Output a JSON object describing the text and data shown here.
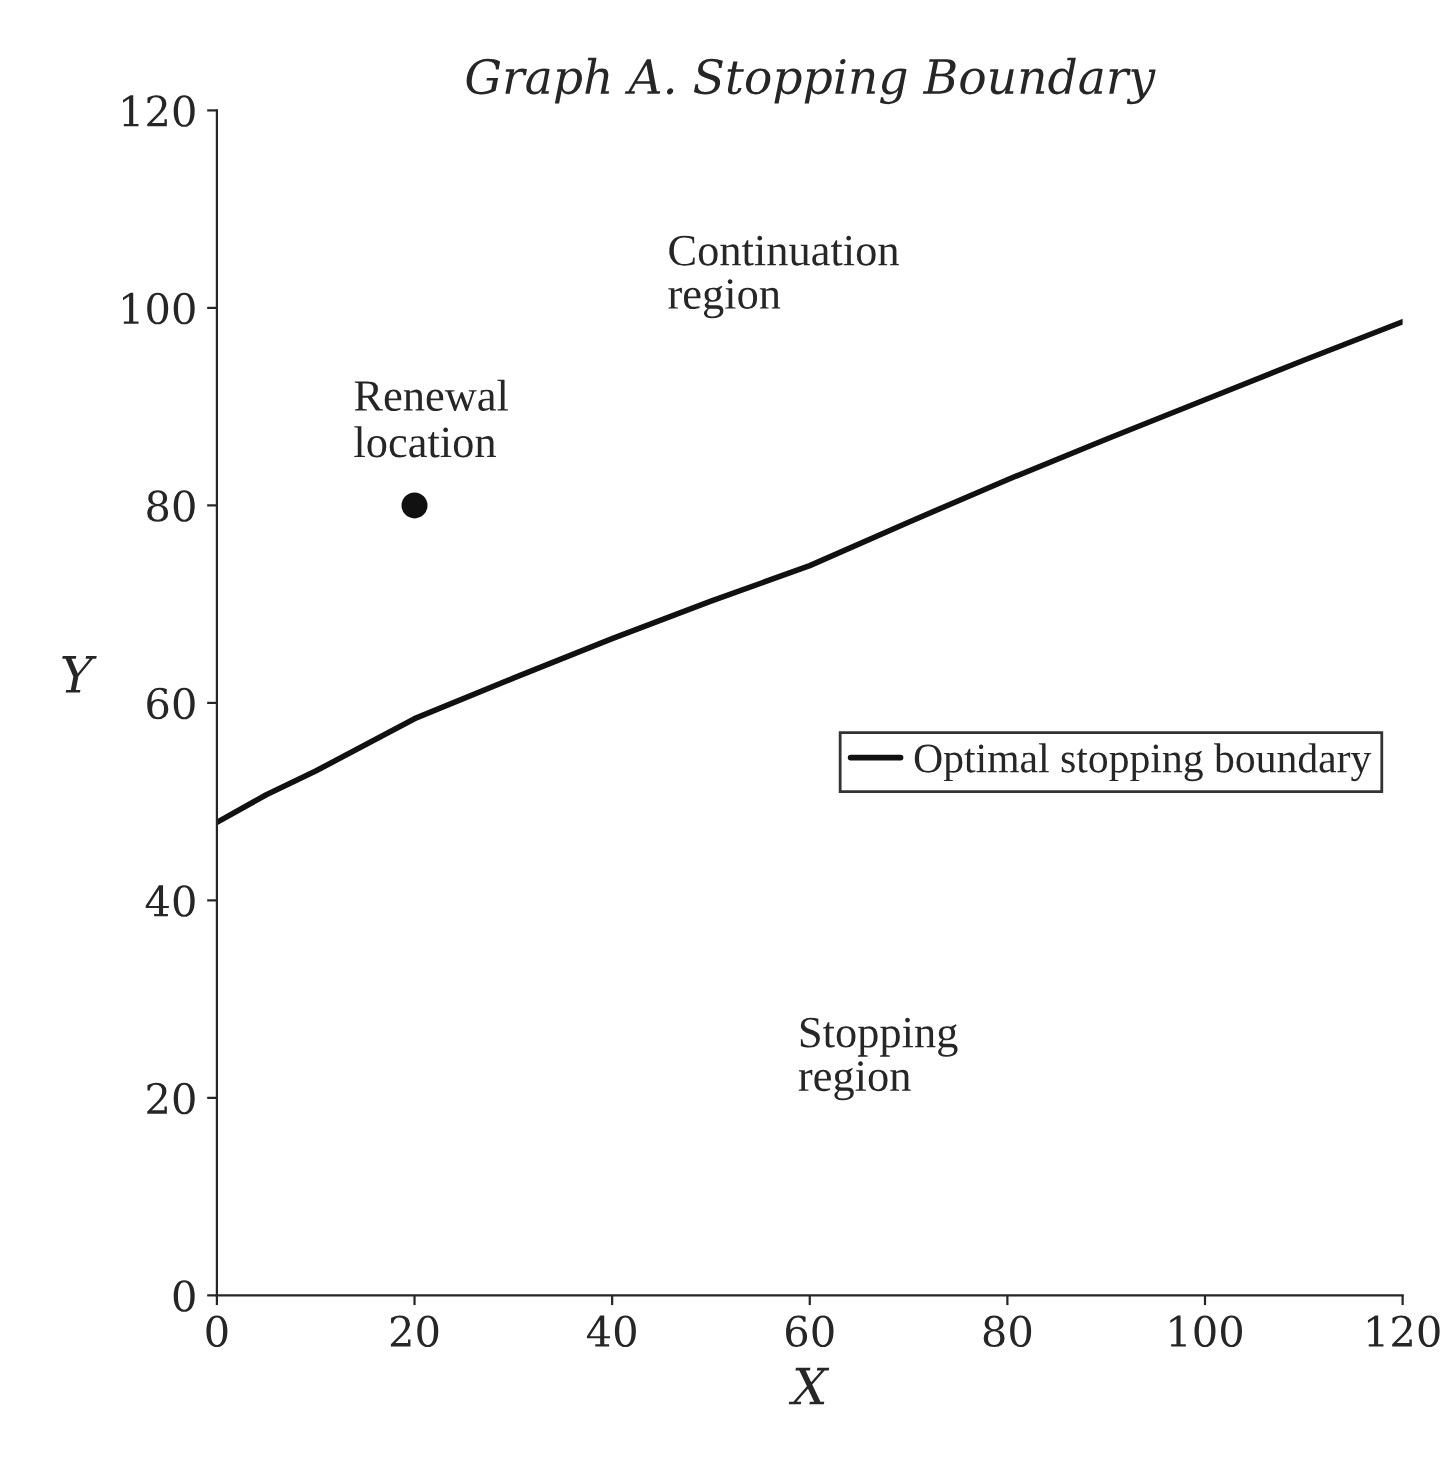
{
  "chart_data": {
    "type": "line",
    "title": "Graph A. Stopping Boundary",
    "xlabel": "X",
    "ylabel": "Y",
    "series": [
      {
        "name": "Optimal stopping boundary",
        "marker": "none",
        "color": "#111111",
        "x": [
          0,
          5,
          10,
          20,
          30,
          40,
          50,
          60,
          70,
          80,
          90,
          100,
          110,
          120
        ],
        "values": [
          47.9,
          50.7,
          53.1,
          58.4,
          62.5,
          66.5,
          70.3,
          73.9,
          78.3,
          82.6,
          86.7,
          90.7,
          94.7,
          98.6
        ]
      },
      {
        "type": "scatter",
        "marker": "circle",
        "color": "#111111",
        "x": [
          20
        ],
        "values": [
          80
        ]
      }
    ],
    "annotations": [
      {
        "text": "Renewal location",
        "x": 20,
        "y": 80
      },
      "Continuation region",
      "Stopping region"
    ],
    "xlim": [
      0,
      120
    ],
    "ylim": [
      0,
      120
    ],
    "xticks": [
      0,
      20,
      40,
      60,
      80,
      100,
      120
    ],
    "yticks": [
      0,
      20,
      40,
      60,
      80,
      100,
      120
    ],
    "grid": false,
    "legend": "right",
    "line_style": "solid"
  }
}
